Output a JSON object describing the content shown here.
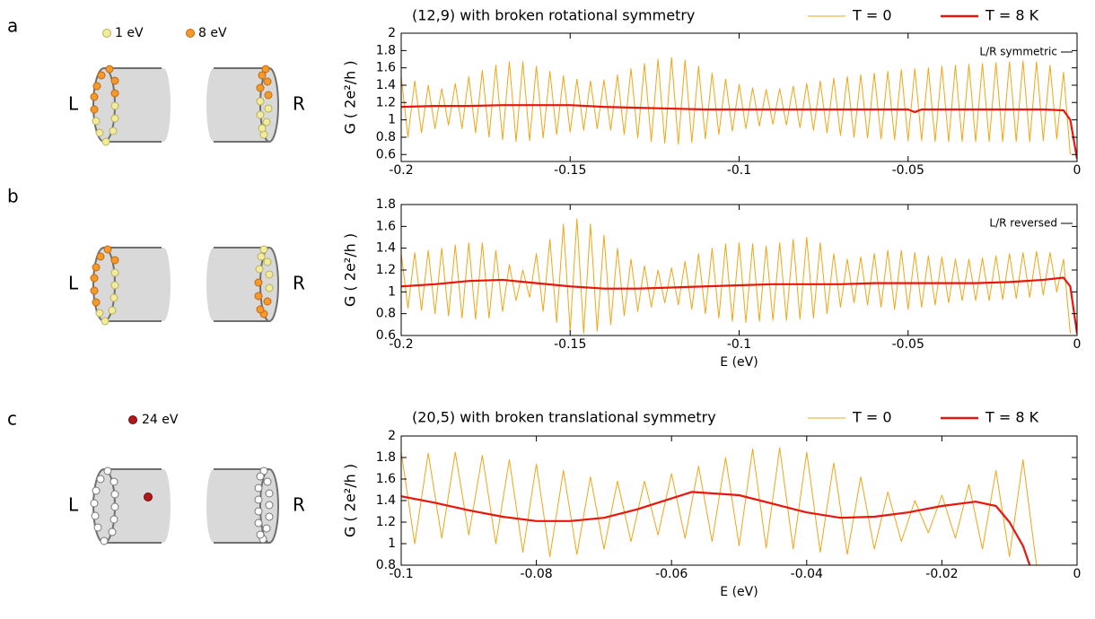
{
  "panel_labels": [
    "a",
    "b",
    "c"
  ],
  "diagrams": [
    {
      "legend": [
        "1 eV",
        "8 eV"
      ],
      "left": "L",
      "right": "R"
    },
    {
      "left": "L",
      "right": "R"
    },
    {
      "legend": [
        "24 eV"
      ],
      "left": "L",
      "right": "R"
    }
  ],
  "chart_data": [
    {
      "type": "line",
      "title": "(12,9) with broken rotational symmetry",
      "annotation": "L/R symmetric",
      "ylabel": "G ( 2e²/h )",
      "xlim": [
        -0.2,
        0
      ],
      "ylim": [
        0.52,
        2
      ],
      "xticks": [
        -0.2,
        -0.15,
        -0.1,
        -0.05,
        0
      ],
      "yticks": [
        0.6,
        0.8,
        1,
        1.2,
        1.4,
        1.6,
        1.8,
        2
      ],
      "legend": "top right",
      "series": [
        {
          "name": "T = 0",
          "color": "#f2a516",
          "x": [
            -0.2,
            -0.198,
            -0.196,
            -0.194,
            -0.192,
            -0.19,
            -0.188,
            -0.186,
            -0.184,
            -0.182,
            -0.18,
            -0.178,
            -0.176,
            -0.174,
            -0.172,
            -0.17,
            -0.168,
            -0.166,
            -0.164,
            -0.162,
            -0.16,
            -0.158,
            -0.156,
            -0.154,
            -0.152,
            -0.15,
            -0.148,
            -0.146,
            -0.144,
            -0.142,
            -0.14,
            -0.138,
            -0.136,
            -0.134,
            -0.132,
            -0.13,
            -0.128,
            -0.126,
            -0.124,
            -0.122,
            -0.12,
            -0.118,
            -0.116,
            -0.114,
            -0.112,
            -0.11,
            -0.108,
            -0.106,
            -0.104,
            -0.102,
            -0.1,
            -0.098,
            -0.096,
            -0.094,
            -0.092,
            -0.09,
            -0.088,
            -0.086,
            -0.084,
            -0.082,
            -0.08,
            -0.078,
            -0.076,
            -0.074,
            -0.072,
            -0.07,
            -0.068,
            -0.066,
            -0.064,
            -0.062,
            -0.06,
            -0.058,
            -0.056,
            -0.054,
            -0.052,
            -0.05,
            -0.048,
            -0.046,
            -0.044,
            -0.042,
            -0.04,
            -0.038,
            -0.036,
            -0.034,
            -0.032,
            -0.03,
            -0.028,
            -0.026,
            -0.024,
            -0.022,
            -0.02,
            -0.018,
            -0.016,
            -0.014,
            -0.012,
            -0.01,
            -0.008,
            -0.006,
            -0.004,
            -0.002
          ],
          "values": [
            1.5,
            0.8,
            1.45,
            0.85,
            1.4,
            0.9,
            1.36,
            0.94,
            1.42,
            0.9,
            1.5,
            0.85,
            1.57,
            0.8,
            1.63,
            0.77,
            1.67,
            0.75,
            1.67,
            0.76,
            1.62,
            0.79,
            1.56,
            0.83,
            1.51,
            0.86,
            1.47,
            0.88,
            1.45,
            0.9,
            1.46,
            0.88,
            1.52,
            0.83,
            1.59,
            0.79,
            1.65,
            0.75,
            1.7,
            0.73,
            1.72,
            0.72,
            1.69,
            0.74,
            1.62,
            0.78,
            1.54,
            0.83,
            1.47,
            0.87,
            1.41,
            0.9,
            1.37,
            0.93,
            1.35,
            0.95,
            1.36,
            0.94,
            1.39,
            0.91,
            1.42,
            0.88,
            1.45,
            0.85,
            1.48,
            0.82,
            1.5,
            0.8,
            1.52,
            0.79,
            1.54,
            0.78,
            1.56,
            0.77,
            1.58,
            0.76,
            1.59,
            0.76,
            1.6,
            0.75,
            1.62,
            0.75,
            1.63,
            0.75,
            1.64,
            0.75,
            1.65,
            0.75,
            1.66,
            0.75,
            1.67,
            0.75,
            1.68,
            0.75,
            1.67,
            0.76,
            1.63,
            0.78,
            1.55,
            0.6
          ]
        },
        {
          "name": "T = 8 K",
          "color": "#e8160c",
          "x": [
            -0.2,
            -0.19,
            -0.18,
            -0.17,
            -0.16,
            -0.15,
            -0.14,
            -0.13,
            -0.12,
            -0.11,
            -0.1,
            -0.09,
            -0.08,
            -0.07,
            -0.06,
            -0.05,
            -0.048,
            -0.046,
            -0.04,
            -0.03,
            -0.02,
            -0.01,
            -0.004,
            -0.002,
            0
          ],
          "values": [
            1.15,
            1.16,
            1.16,
            1.17,
            1.17,
            1.17,
            1.15,
            1.14,
            1.13,
            1.12,
            1.12,
            1.12,
            1.12,
            1.12,
            1.12,
            1.12,
            1.09,
            1.12,
            1.12,
            1.12,
            1.12,
            1.12,
            1.11,
            1,
            0.55
          ]
        }
      ]
    },
    {
      "type": "line",
      "annotation": "L/R reversed",
      "xlabel": "E (eV)",
      "ylabel": "G ( 2e²/h )",
      "xlim": [
        -0.2,
        0
      ],
      "ylim": [
        0.6,
        1.8
      ],
      "xticks": [
        -0.2,
        -0.15,
        -0.1,
        -0.05,
        0
      ],
      "yticks": [
        0.6,
        0.8,
        1,
        1.2,
        1.4,
        1.6,
        1.8
      ],
      "series": [
        {
          "color": "#f2a516",
          "x": [
            -0.2,
            -0.198,
            -0.196,
            -0.194,
            -0.192,
            -0.19,
            -0.188,
            -0.186,
            -0.184,
            -0.182,
            -0.18,
            -0.178,
            -0.176,
            -0.174,
            -0.172,
            -0.17,
            -0.168,
            -0.166,
            -0.164,
            -0.162,
            -0.16,
            -0.158,
            -0.156,
            -0.154,
            -0.152,
            -0.15,
            -0.148,
            -0.146,
            -0.144,
            -0.142,
            -0.14,
            -0.138,
            -0.136,
            -0.134,
            -0.132,
            -0.13,
            -0.128,
            -0.126,
            -0.124,
            -0.122,
            -0.12,
            -0.118,
            -0.116,
            -0.114,
            -0.112,
            -0.11,
            -0.108,
            -0.106,
            -0.104,
            -0.102,
            -0.1,
            -0.098,
            -0.096,
            -0.094,
            -0.092,
            -0.09,
            -0.088,
            -0.086,
            -0.084,
            -0.082,
            -0.08,
            -0.078,
            -0.076,
            -0.074,
            -0.072,
            -0.07,
            -0.068,
            -0.066,
            -0.064,
            -0.062,
            -0.06,
            -0.058,
            -0.056,
            -0.054,
            -0.052,
            -0.05,
            -0.048,
            -0.046,
            -0.044,
            -0.042,
            -0.04,
            -0.038,
            -0.036,
            -0.034,
            -0.032,
            -0.03,
            -0.028,
            -0.026,
            -0.024,
            -0.022,
            -0.02,
            -0.018,
            -0.016,
            -0.014,
            -0.012,
            -0.01,
            -0.008,
            -0.006,
            -0.004,
            -0.002
          ],
          "values": [
            1.35,
            0.85,
            1.36,
            0.83,
            1.38,
            0.8,
            1.4,
            0.78,
            1.43,
            0.76,
            1.45,
            0.75,
            1.45,
            0.76,
            1.38,
            0.82,
            1.25,
            0.92,
            1.2,
            0.95,
            1.35,
            0.82,
            1.48,
            0.72,
            1.62,
            0.64,
            1.67,
            0.62,
            1.62,
            0.64,
            1.52,
            0.7,
            1.4,
            0.78,
            1.3,
            0.82,
            1.24,
            0.86,
            1.2,
            0.9,
            1.22,
            0.88,
            1.28,
            0.84,
            1.35,
            0.8,
            1.4,
            0.76,
            1.44,
            0.73,
            1.45,
            0.72,
            1.44,
            0.73,
            1.42,
            0.74,
            1.45,
            0.74,
            1.48,
            0.75,
            1.5,
            0.76,
            1.45,
            0.8,
            1.35,
            0.86,
            1.3,
            0.9,
            1.32,
            0.88,
            1.35,
            0.86,
            1.38,
            0.84,
            1.38,
            0.84,
            1.36,
            0.86,
            1.33,
            0.88,
            1.32,
            0.9,
            1.3,
            0.92,
            1.3,
            0.92,
            1.31,
            0.92,
            1.33,
            0.93,
            1.35,
            0.94,
            1.36,
            0.95,
            1.37,
            0.97,
            1.36,
            1,
            1.3,
            0.62
          ]
        },
        {
          "color": "#e8160c",
          "x": [
            -0.2,
            -0.19,
            -0.18,
            -0.17,
            -0.16,
            -0.15,
            -0.14,
            -0.13,
            -0.12,
            -0.11,
            -0.1,
            -0.09,
            -0.08,
            -0.07,
            -0.06,
            -0.05,
            -0.04,
            -0.03,
            -0.02,
            -0.01,
            -0.004,
            -0.002,
            0
          ],
          "values": [
            1.05,
            1.07,
            1.1,
            1.11,
            1.08,
            1.05,
            1.03,
            1.03,
            1.04,
            1.05,
            1.06,
            1.07,
            1.07,
            1.07,
            1.08,
            1.08,
            1.08,
            1.08,
            1.09,
            1.11,
            1.13,
            1.05,
            0.62
          ]
        }
      ]
    },
    {
      "type": "line",
      "title": "(20,5) with broken translational symmetry",
      "xlabel": "E (eV)",
      "ylabel": "G ( 2e²/h )",
      "xlim": [
        -0.1,
        0
      ],
      "ylim": [
        0.8,
        2
      ],
      "xticks": [
        -0.1,
        -0.08,
        -0.06,
        -0.04,
        -0.02,
        0
      ],
      "yticks": [
        0.8,
        1,
        1.2,
        1.4,
        1.6,
        1.8,
        2
      ],
      "legend": "top right",
      "series": [
        {
          "name": "T = 0",
          "color": "#f2a516",
          "x": [
            -0.1,
            -0.098,
            -0.096,
            -0.094,
            -0.092,
            -0.09,
            -0.088,
            -0.086,
            -0.084,
            -0.082,
            -0.08,
            -0.078,
            -0.076,
            -0.074,
            -0.072,
            -0.07,
            -0.068,
            -0.066,
            -0.064,
            -0.062,
            -0.06,
            -0.058,
            -0.056,
            -0.054,
            -0.052,
            -0.05,
            -0.048,
            -0.046,
            -0.044,
            -0.042,
            -0.04,
            -0.038,
            -0.036,
            -0.034,
            -0.032,
            -0.03,
            -0.028,
            -0.026,
            -0.024,
            -0.022,
            -0.02,
            -0.018,
            -0.016,
            -0.014,
            -0.012,
            -0.01,
            -0.008,
            -0.006
          ],
          "values": [
            1.85,
            1,
            1.84,
            1.05,
            1.85,
            1.08,
            1.82,
            1,
            1.78,
            0.92,
            1.74,
            0.88,
            1.68,
            0.9,
            1.62,
            0.95,
            1.58,
            1.02,
            1.58,
            1.08,
            1.65,
            1.05,
            1.72,
            1.02,
            1.8,
            0.98,
            1.88,
            0.96,
            1.89,
            0.95,
            1.85,
            0.92,
            1.75,
            0.9,
            1.62,
            0.95,
            1.48,
            1.02,
            1.4,
            1.1,
            1.45,
            1.05,
            1.55,
            0.95,
            1.68,
            0.88,
            1.78,
            0.8
          ]
        },
        {
          "name": "T = 8 K",
          "color": "#e8160c",
          "x": [
            -0.1,
            -0.095,
            -0.09,
            -0.085,
            -0.08,
            -0.075,
            -0.07,
            -0.065,
            -0.06,
            -0.057,
            -0.05,
            -0.045,
            -0.04,
            -0.035,
            -0.03,
            -0.025,
            -0.02,
            -0.015,
            -0.012,
            -0.01,
            -0.008,
            -0.007
          ],
          "values": [
            1.44,
            1.38,
            1.31,
            1.25,
            1.21,
            1.21,
            1.24,
            1.32,
            1.42,
            1.48,
            1.45,
            1.37,
            1.29,
            1.24,
            1.25,
            1.29,
            1.35,
            1.39,
            1.35,
            1.2,
            0.98,
            0.8
          ]
        }
      ]
    }
  ]
}
